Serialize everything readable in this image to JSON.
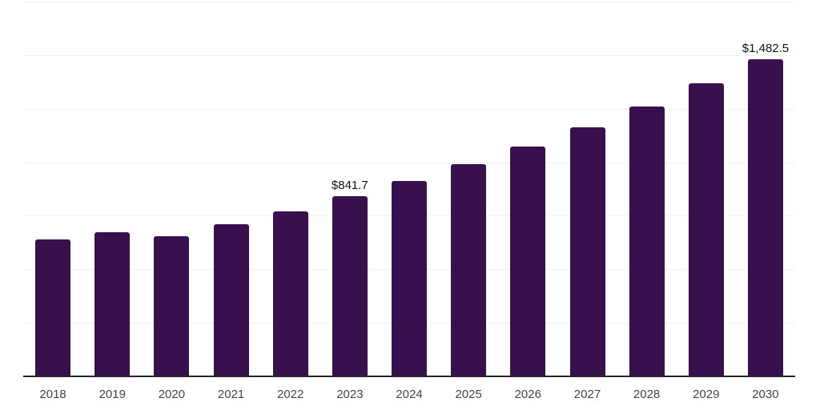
{
  "chart_data": {
    "type": "bar",
    "title": "",
    "xlabel": "",
    "ylabel": "",
    "categories": [
      "2018",
      "2019",
      "2020",
      "2021",
      "2022",
      "2023",
      "2024",
      "2025",
      "2026",
      "2027",
      "2028",
      "2029",
      "2030"
    ],
    "values": [
      640.7,
      674.2,
      655.6,
      711.5,
      771.1,
      841.7,
      912.6,
      989.5,
      1072.9,
      1163.3,
      1261.3,
      1367.6,
      1482.5
    ],
    "data_labels": {
      "2023": "$841.7",
      "2030": "$1,482.5"
    },
    "ylim": [
      0,
      1750
    ],
    "grid_step": 250,
    "grid": true,
    "legend": false,
    "y_axis_labels_visible": false,
    "colors": {
      "bar": "#38104E",
      "gridline": "#f1f1f1",
      "axis_line": "#262626",
      "tick_label": "#444444",
      "data_label": "#111111",
      "background": "#ffffff"
    }
  }
}
